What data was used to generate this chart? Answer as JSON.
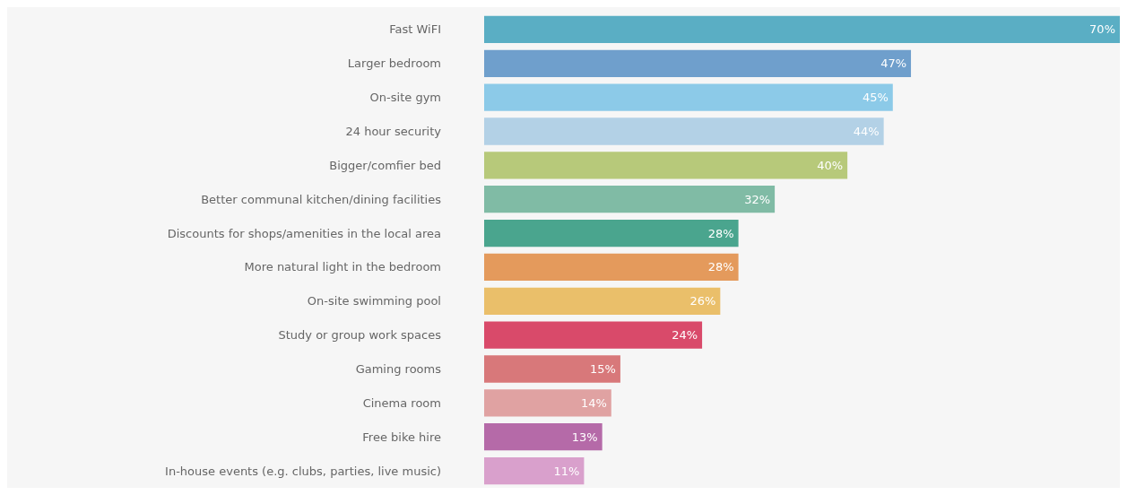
{
  "chart_data": {
    "type": "bar",
    "orientation": "horizontal",
    "categories": [
      "Fast WiFI",
      "Larger bedroom",
      "On-site gym",
      "24 hour security",
      "Bigger/comfier bed",
      "Better communal kitchen/dining facilities",
      "Discounts for shops/amenities in the local area",
      "More natural light in the bedroom",
      "On-site swimming pool",
      "Study or group work spaces",
      "Gaming rooms",
      "Cinema room",
      "Free bike hire",
      "In-house events (e.g. clubs, parties, live music)"
    ],
    "values": [
      70,
      47,
      45,
      44,
      40,
      32,
      28,
      28,
      26,
      24,
      15,
      14,
      13,
      11
    ],
    "value_labels": [
      "70%",
      "47%",
      "45%",
      "44%",
      "40%",
      "32%",
      "28%",
      "28%",
      "26%",
      "24%",
      "15%",
      "14%",
      "13%",
      "11%"
    ],
    "colors": [
      "#5aaec4",
      "#6f9fcc",
      "#8ccae8",
      "#b3d1e6",
      "#b7c97a",
      "#80bba5",
      "#4aa58e",
      "#e49a5c",
      "#eabf6a",
      "#d94a6a",
      "#d8787a",
      "#e0a2a2",
      "#b56aa8",
      "#d9a0cc"
    ],
    "grid": false
  }
}
